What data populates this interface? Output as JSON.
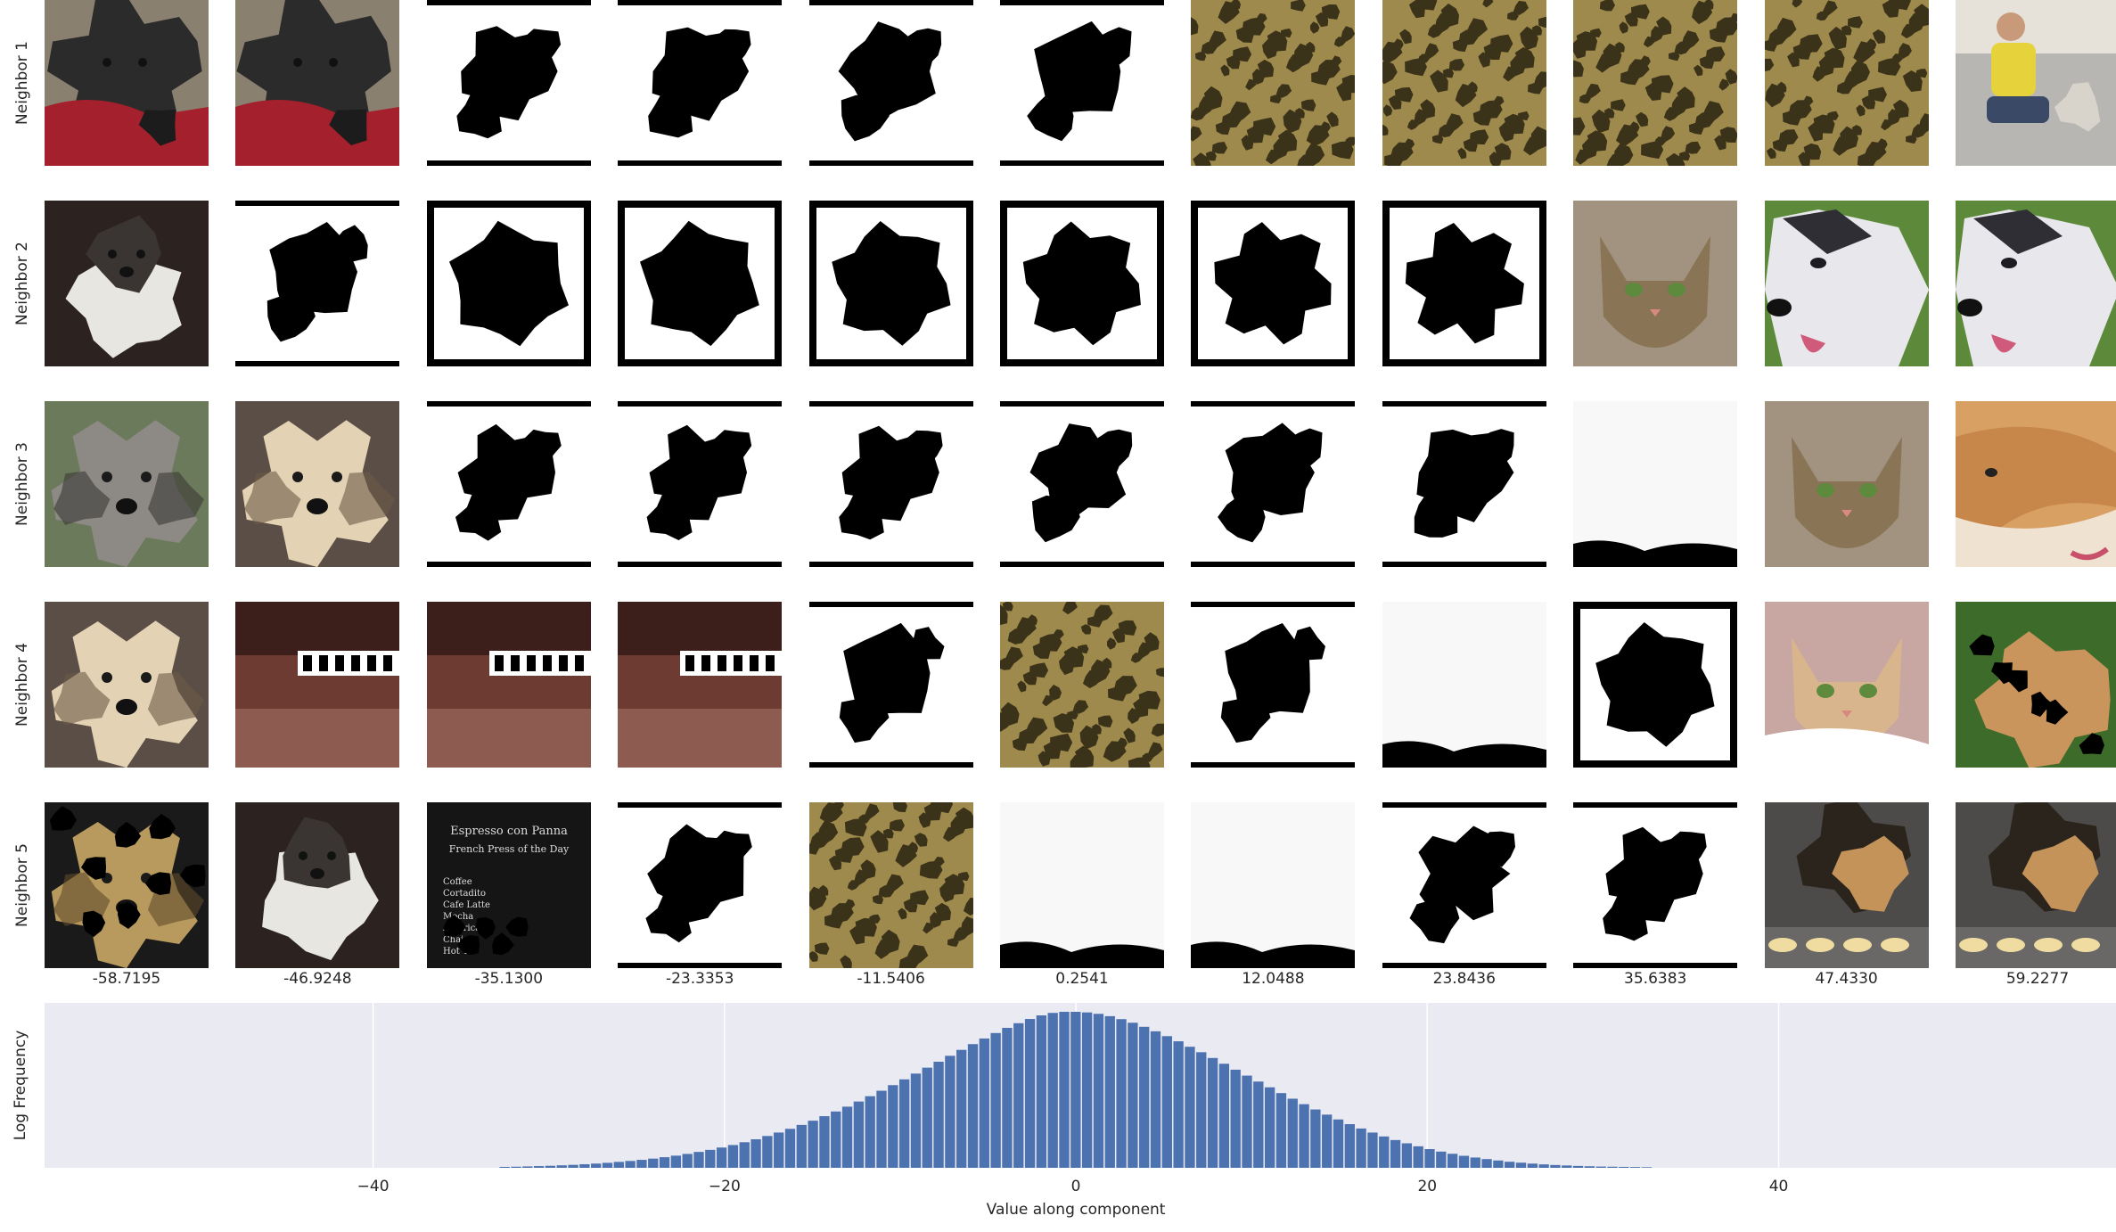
{
  "rows": [
    "Neighbor 1",
    "Neighbor 2",
    "Neighbor 3",
    "Neighbor 4",
    "Neighbor 5"
  ],
  "columns": [
    "-58.7195",
    "-46.9248",
    "-35.1300",
    "-23.3353",
    "-11.5406",
    "0.2541",
    "12.0488",
    "23.8436",
    "35.6383",
    "47.4330",
    "59.2277"
  ],
  "thumbnails": [
    [
      "dog-black-red",
      "dog-black-red",
      "mask-a",
      "mask-a",
      "mask-b",
      "mask-c",
      "texture",
      "texture",
      "texture",
      "texture",
      "man-dog"
    ],
    [
      "dog-shih",
      "mask-a",
      "mask-frame",
      "mask-frame",
      "mask-frame",
      "mask-frame",
      "mask-frame",
      "mask-frame",
      "cat-tabby",
      "husky",
      "husky"
    ],
    [
      "dog-gray",
      "dog-cream",
      "mask-d",
      "mask-d",
      "mask-d",
      "mask-e",
      "mask-f",
      "mask-d",
      "white-blot",
      "cat-tabby",
      "shiba"
    ],
    [
      "dog-cream",
      "blur-room",
      "blur-room",
      "blur-room",
      "mask-g",
      "texture",
      "mask-d",
      "white-blot",
      "mask-frame",
      "cat-orange",
      "dog-leaves"
    ],
    [
      "dog-blots",
      "dog-shih",
      "menu",
      "mask-g",
      "texture",
      "white-blot",
      "white-blot",
      "mask-f",
      "mask-d",
      "shepherd",
      "shepherd"
    ]
  ],
  "menu_text": {
    "lines": [
      "Espresso con Panna",
      "French Press of the Day"
    ],
    "rows": [
      "Coffee",
      "Cortadito",
      "Cafe Latte",
      "Mocha",
      "Americano",
      "Chai",
      "Hot Tea"
    ]
  },
  "chart_data": {
    "type": "bar",
    "title": "",
    "xlabel": "Value along component",
    "ylabel": "Log Frequency",
    "xlim": [
      -58.7,
      59.2
    ],
    "xticks": [
      -40,
      -20,
      0,
      20,
      40
    ],
    "xtick_labels": [
      "−40",
      "−20",
      "0",
      "20",
      "40"
    ],
    "grid": true,
    "bar_color": "#4c72b0",
    "background": "#eaeaf2",
    "bin_width": 0.65,
    "bins_x": [
      -32.8,
      -32.15,
      -31.5,
      -30.85,
      -30.2,
      -29.55,
      -28.9,
      -28.25,
      -27.6,
      -26.95,
      -26.3,
      -25.65,
      -25.0,
      -24.35,
      -23.7,
      -23.05,
      -22.4,
      -21.75,
      -21.1,
      -20.45,
      -19.8,
      -19.15,
      -18.5,
      -17.85,
      -17.2,
      -16.55,
      -15.9,
      -15.25,
      -14.6,
      -13.95,
      -13.3,
      -12.65,
      -12.0,
      -11.35,
      -10.7,
      -10.05,
      -9.4,
      -8.75,
      -8.1,
      -7.45,
      -6.8,
      -6.15,
      -5.5,
      -4.85,
      -4.2,
      -3.55,
      -2.9,
      -2.25,
      -1.6,
      -0.95,
      -0.3,
      0.35,
      1.0,
      1.65,
      2.3,
      2.95,
      3.6,
      4.25,
      4.9,
      5.55,
      6.2,
      6.85,
      7.5,
      8.15,
      8.8,
      9.45,
      10.1,
      10.75,
      11.4,
      12.05,
      12.7,
      13.35,
      14.0,
      14.65,
      15.3,
      15.95,
      16.6,
      17.25,
      17.9,
      18.55,
      19.2,
      19.85,
      20.5,
      21.15,
      21.8,
      22.45,
      23.1,
      23.75,
      24.4,
      25.05,
      25.7,
      26.35,
      27.0,
      27.65,
      28.3,
      28.95,
      29.6,
      30.25,
      30.9,
      31.55,
      32.2
    ],
    "values": [
      0.006,
      0.007,
      0.009,
      0.011,
      0.013,
      0.016,
      0.019,
      0.023,
      0.027,
      0.032,
      0.038,
      0.044,
      0.051,
      0.059,
      0.068,
      0.078,
      0.089,
      0.102,
      0.115,
      0.13,
      0.146,
      0.164,
      0.183,
      0.204,
      0.226,
      0.25,
      0.275,
      0.302,
      0.331,
      0.361,
      0.392,
      0.425,
      0.459,
      0.494,
      0.53,
      0.567,
      0.604,
      0.642,
      0.68,
      0.718,
      0.756,
      0.793,
      0.829,
      0.864,
      0.897,
      0.927,
      0.954,
      0.977,
      0.993,
      1.0,
      1.0,
      0.996,
      0.987,
      0.972,
      0.953,
      0.93,
      0.904,
      0.875,
      0.844,
      0.811,
      0.776,
      0.741,
      0.704,
      0.667,
      0.629,
      0.591,
      0.553,
      0.516,
      0.479,
      0.443,
      0.408,
      0.374,
      0.341,
      0.31,
      0.28,
      0.252,
      0.226,
      0.201,
      0.178,
      0.157,
      0.138,
      0.12,
      0.104,
      0.09,
      0.077,
      0.066,
      0.056,
      0.047,
      0.039,
      0.033,
      0.027,
      0.022,
      0.018,
      0.015,
      0.012,
      0.01,
      0.008,
      0.007,
      0.006,
      0.005,
      0.004
    ]
  }
}
